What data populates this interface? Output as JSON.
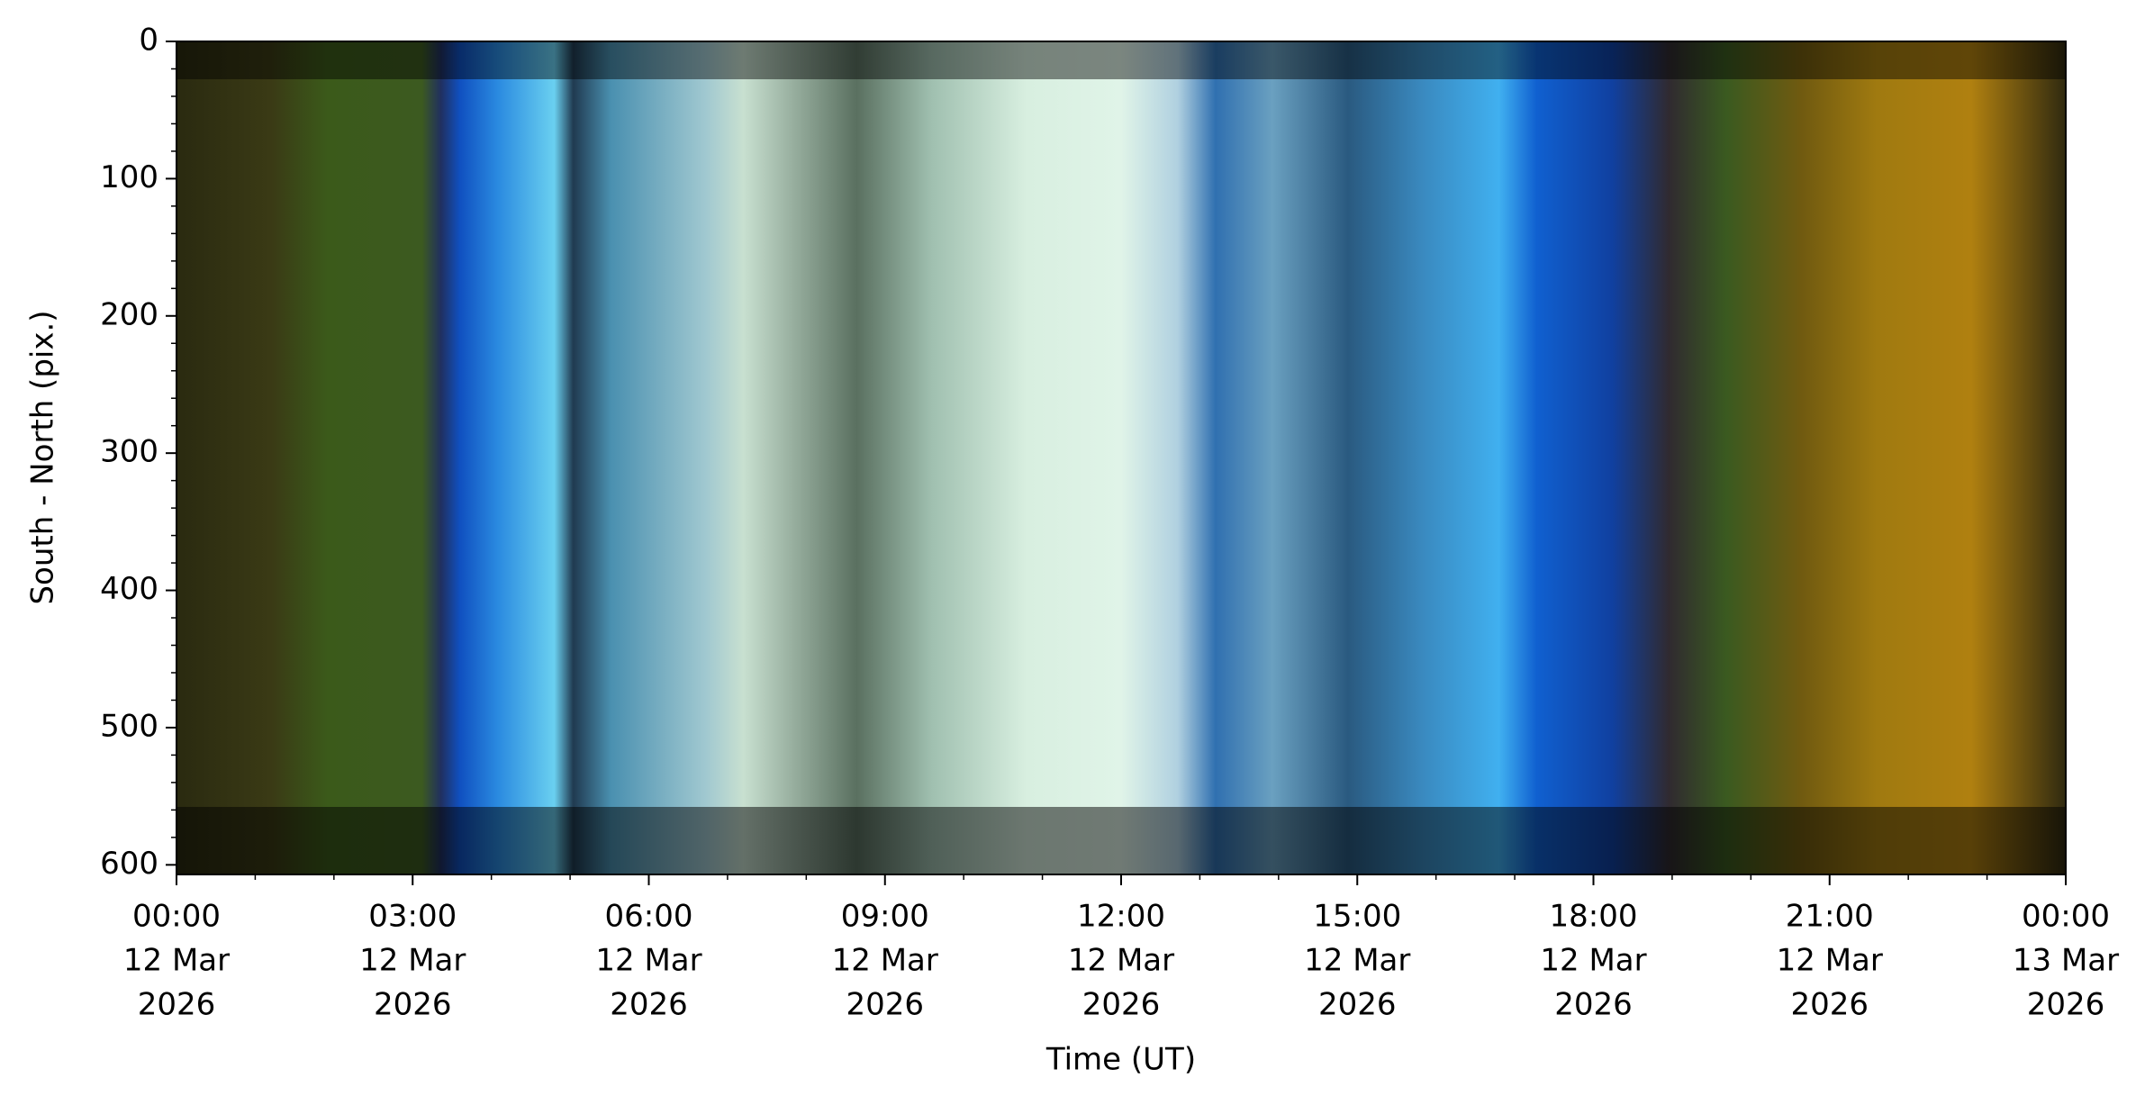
{
  "chart_data": {
    "type": "image",
    "x_label": "Time (UT)",
    "y_label": "South - North (pix.)",
    "xlim": [
      "2026-03-12T00:00",
      "2026-03-13T00:00"
    ],
    "xticks": [
      {
        "value": "2026-03-12T00:00",
        "label": [
          "00:00",
          "12 Mar",
          "2026"
        ]
      },
      {
        "value": "2026-03-12T03:00",
        "label": [
          "03:00",
          "12 Mar",
          "2026"
        ]
      },
      {
        "value": "2026-03-12T06:00",
        "label": [
          "06:00",
          "12 Mar",
          "2026"
        ]
      },
      {
        "value": "2026-03-12T09:00",
        "label": [
          "09:00",
          "12 Mar",
          "2026"
        ]
      },
      {
        "value": "2026-03-12T12:00",
        "label": [
          "12:00",
          "12 Mar",
          "2026"
        ]
      },
      {
        "value": "2026-03-12T15:00",
        "label": [
          "15:00",
          "12 Mar",
          "2026"
        ]
      },
      {
        "value": "2026-03-12T18:00",
        "label": [
          "18:00",
          "12 Mar",
          "2026"
        ]
      },
      {
        "value": "2026-03-12T21:00",
        "label": [
          "21:00",
          "12 Mar",
          "2026"
        ]
      },
      {
        "value": "2026-03-13T00:00",
        "label": [
          "00:00",
          "13 Mar",
          "2026"
        ]
      }
    ],
    "ylim": [
      607,
      0
    ],
    "yticks": [
      0,
      100,
      200,
      300,
      400,
      500,
      600
    ]
  }
}
